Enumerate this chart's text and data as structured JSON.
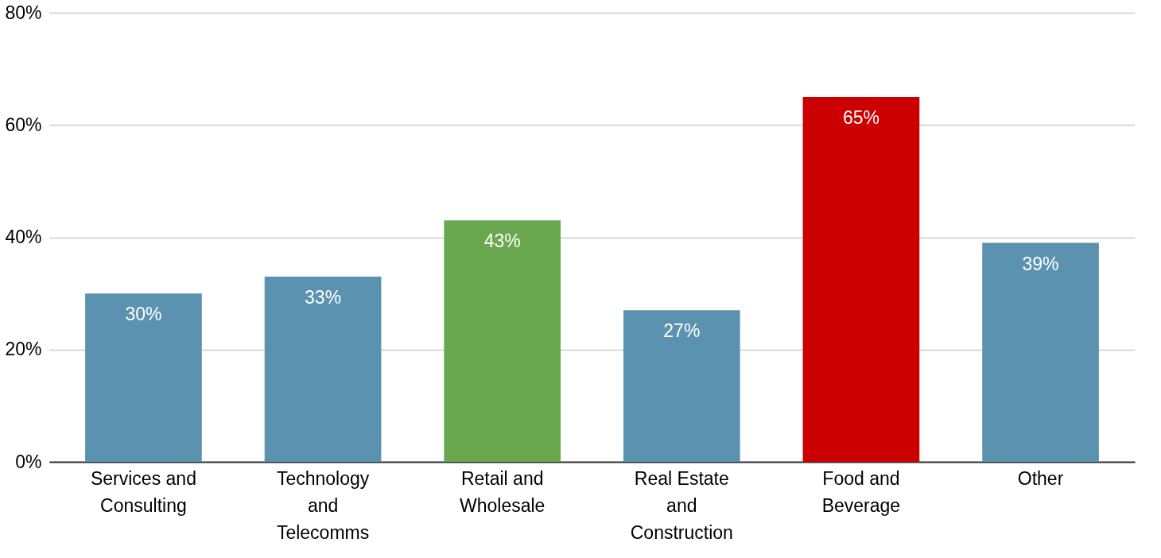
{
  "chart_data": {
    "type": "bar",
    "categories": [
      "Services and Consulting",
      "Technology and Telecomms",
      "Retail and Wholesale",
      "Real Estate and Construction",
      "Food and Beverage",
      "Other"
    ],
    "values": [
      30,
      33,
      43,
      27,
      65,
      39
    ],
    "colors": [
      "#5b92b0",
      "#5b92b0",
      "#6aa84f",
      "#5b92b0",
      "#cc0000",
      "#5b92b0"
    ],
    "value_labels": [
      "30%",
      "33%",
      "43%",
      "27%",
      "65%",
      "39%"
    ],
    "ylim": [
      0,
      80
    ],
    "yticks": [
      {
        "value": 0,
        "label": "0%"
      },
      {
        "value": 20,
        "label": "20%"
      },
      {
        "value": 40,
        "label": "40%"
      },
      {
        "value": 60,
        "label": "60%"
      },
      {
        "value": 80,
        "label": "80%"
      }
    ],
    "grid": "y"
  }
}
